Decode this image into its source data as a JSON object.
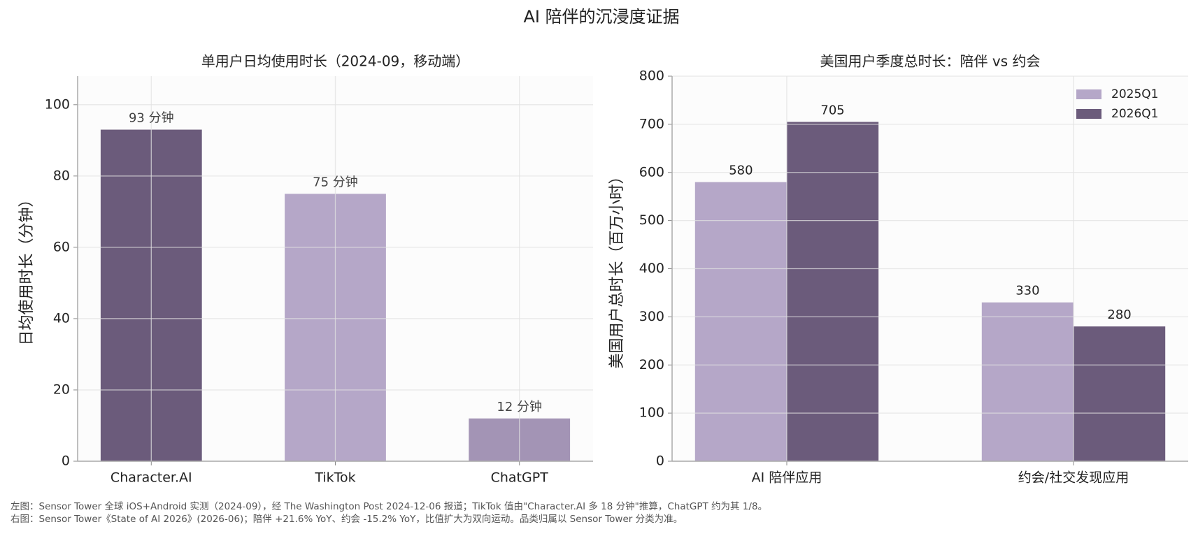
{
  "title": "AI 陪伴的沉浸度证据",
  "footnotes": [
    "左图：Sensor Tower 全球 iOS+Android 实测（2024-09），经 The Washington Post 2024-12-06 报道；TikTok 值由\"Character.AI 多 18 分钟\"推算，ChatGPT 约为其 1/8。",
    "右图：Sensor Tower《State of AI 2026》(2026-06)；陪伴 +21.6% YoY、约会 -15.2% YoY，比值扩大为双向运动。品类归属以 Sensor Tower 分类为准。"
  ],
  "chart_data": [
    {
      "type": "bar",
      "title": "单用户日均使用时长（2024-09，移动端）",
      "ylabel": "日均使用时长（分钟）",
      "categories": [
        "Character.AI",
        "TikTok",
        "ChatGPT"
      ],
      "values": [
        93,
        75,
        12
      ],
      "value_labels": [
        "93 分钟",
        "75 分钟",
        "12 分钟"
      ],
      "colors": [
        "#6b5b7b",
        "#b5a7c8",
        "#a394b5"
      ],
      "ylim": [
        0,
        108
      ],
      "yticks": [
        0,
        20,
        40,
        60,
        80,
        100
      ],
      "grid": true
    },
    {
      "type": "bar",
      "title": "美国用户季度总时长：陪伴 vs 约会",
      "ylabel": "美国用户总时长（百万小时）",
      "categories": [
        "AI 陪伴应用",
        "约会/社交发现应用"
      ],
      "series": [
        {
          "name": "2025Q1",
          "color": "#b5a7c8",
          "values": [
            580,
            330
          ]
        },
        {
          "name": "2026Q1",
          "color": "#6b5b7b",
          "values": [
            705,
            280
          ]
        }
      ],
      "ylim": [
        0,
        800
      ],
      "yticks": [
        0,
        100,
        200,
        300,
        400,
        500,
        600,
        700,
        800
      ],
      "grid": true,
      "legend": "upper right"
    }
  ]
}
